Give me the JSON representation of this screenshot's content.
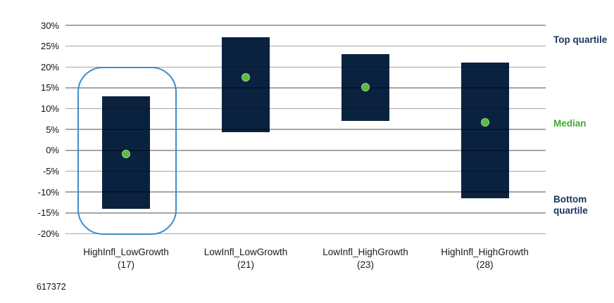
{
  "footnote": "617372",
  "annotations": {
    "top_quartile": "Top quartile",
    "median": "Median",
    "bottom_quartile": "Bottom quartile"
  },
  "colors": {
    "bar": "#0a2240",
    "median_dot": "#5cbb46",
    "median_dot_rim": "#9ed57e",
    "median_text": "#3fae2d",
    "annotation_text": "#17365d",
    "gridline": "rgba(0,0,0,0.35)",
    "highlight_border": "#3e8ec9",
    "axis_text": "#111111",
    "category_text": "#1a1a1a"
  },
  "chart_data": {
    "type": "bar",
    "subtype": "floating-quartile-range",
    "categories": [
      "HighInfl_LowGrowth",
      "LowInfl_LowGrowth",
      "LowInfl_HighGrowth",
      "HighInfl_HighGrowth"
    ],
    "counts": [
      17,
      21,
      23,
      28
    ],
    "series": [
      {
        "name": "Top quartile",
        "values": [
          13.0,
          27.1,
          23.1,
          21.0
        ]
      },
      {
        "name": "Median",
        "values": [
          -0.9,
          17.6,
          15.2,
          6.7
        ]
      },
      {
        "name": "Bottom quartile",
        "values": [
          -14.0,
          4.4,
          7.1,
          -11.5
        ]
      }
    ],
    "ylim": [
      -20,
      30
    ],
    "ytick_values": [
      30,
      25,
      20,
      15,
      10,
      5,
      0,
      -5,
      -10,
      -15,
      -20
    ],
    "ytick_labels": [
      "30%",
      "25%",
      "20%",
      "15%",
      "10%",
      "5%",
      "0%",
      "-5%",
      "-10%",
      "-15%",
      "-20%"
    ],
    "grid": true,
    "legend_position": "right-annotations",
    "highlighted_category": "HighInfl_LowGrowth",
    "title": "",
    "xlabel": "",
    "ylabel": ""
  }
}
